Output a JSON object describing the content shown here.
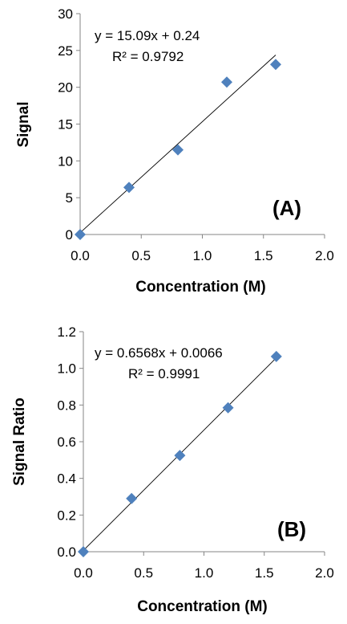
{
  "colors": {
    "marker": "#4F81BD",
    "axis": "#868686",
    "trendline": "#000000"
  },
  "chart_data": [
    {
      "type": "scatter",
      "panel_label": "(A)",
      "xlabel": "Concentration (M)",
      "ylabel": "Signal",
      "xlim": [
        0,
        2.0
      ],
      "ylim": [
        0,
        30
      ],
      "x_ticks": [
        "0.0",
        "0.5",
        "1.0",
        "1.5",
        "2.0"
      ],
      "y_ticks": [
        "0",
        "5",
        "10",
        "15",
        "20",
        "25",
        "30"
      ],
      "grid": false,
      "legend": "none",
      "points": [
        {
          "x": 0.0,
          "y": 0.0
        },
        {
          "x": 0.4,
          "y": 6.4
        },
        {
          "x": 0.8,
          "y": 11.5
        },
        {
          "x": 1.2,
          "y": 20.7
        },
        {
          "x": 1.6,
          "y": 23.1
        }
      ],
      "trendline": {
        "slope": 15.09,
        "intercept": 0.24,
        "x_range": [
          0.0,
          1.6
        ]
      },
      "equation": "y = 15.09x + 0.24",
      "r_squared": "R² = 0.9792"
    },
    {
      "type": "scatter",
      "panel_label": "(B)",
      "xlabel": "Concentration (M)",
      "ylabel": "Signal Ratio",
      "xlim": [
        0,
        2.0
      ],
      "ylim": [
        0,
        1.2
      ],
      "x_ticks": [
        "0.0",
        "0.5",
        "1.0",
        "1.5",
        "2.0"
      ],
      "y_ticks": [
        "0.0",
        "0.2",
        "0.4",
        "0.6",
        "0.8",
        "1.0",
        "1.2"
      ],
      "grid": false,
      "legend": "none",
      "points": [
        {
          "x": 0.0,
          "y": 0.0
        },
        {
          "x": 0.4,
          "y": 0.29
        },
        {
          "x": 0.8,
          "y": 0.525
        },
        {
          "x": 1.2,
          "y": 0.785
        },
        {
          "x": 1.6,
          "y": 1.065
        }
      ],
      "trendline": {
        "slope": 0.6568,
        "intercept": 0.0066,
        "x_range": [
          0.0,
          1.6
        ]
      },
      "equation": "y = 0.6568x + 0.0066",
      "r_squared": "R² = 0.9991"
    }
  ]
}
